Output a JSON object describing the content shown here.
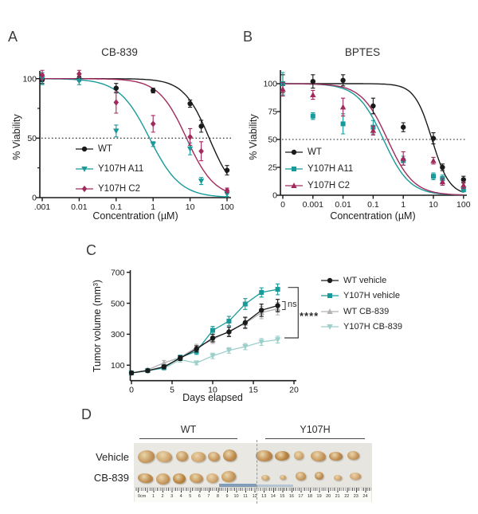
{
  "figure": {
    "panels": {
      "A": {
        "label": "A",
        "title": "CB-839",
        "xlabel": "Concentration (µM)",
        "ylabel": "% Viability"
      },
      "B": {
        "label": "B",
        "title": "BPTES",
        "xlabel": "Concentration (µM)",
        "ylabel": "% Viability"
      },
      "C": {
        "label": "C",
        "xlabel": "Days elapsed",
        "ylabel": "Tumor volume (mm³)"
      },
      "D": {
        "label": "D",
        "col_labels": [
          "WT",
          "Y107H"
        ],
        "row_labels": [
          "Vehicle",
          "CB-839"
        ],
        "ruler": {
          "zero_label": "0cm",
          "numbers": [
            "1",
            "2",
            "3",
            "4",
            "5",
            "6",
            "7",
            "8",
            "9",
            "10",
            "11",
            "12",
            "13",
            "14",
            "15",
            "16",
            "17",
            "18",
            "19",
            "20",
            "21",
            "22",
            "23",
            "24"
          ]
        },
        "tumor_palette": [
          "#c89a61",
          "#bf8c50",
          "#d2a873",
          "#b9833f"
        ],
        "tumors": {
          "wt_vehicle": [
            [
              183,
              573,
              21,
              16,
              0,
              -10
            ],
            [
              206,
              573,
              20,
              14,
              2,
              5
            ],
            [
              228,
              572,
              15,
              13,
              0,
              0
            ],
            [
              249,
              573,
              18,
              13,
              2,
              -5
            ],
            [
              268,
              573,
              15,
              12,
              0,
              8
            ],
            [
              288,
              571,
              17,
              15,
              1,
              0
            ]
          ],
          "wt_cb839": [
            [
              182,
              600,
              19,
              12,
              1,
              5
            ],
            [
              204,
              601,
              17,
              14,
              0,
              -6
            ],
            [
              225,
              600,
              16,
              13,
              3,
              0
            ],
            [
              246,
              600,
              17,
              12,
              0,
              6
            ],
            [
              266,
              600,
              15,
              12,
              2,
              0
            ],
            [
              287,
              598,
              18,
              14,
              0,
              -8
            ]
          ],
          "y107h_vehicle": [
            [
              331,
              572,
              21,
              14,
              1,
              0
            ],
            [
              354,
              572,
              18,
              12,
              3,
              -6
            ],
            [
              375,
              571,
              12,
              11,
              2,
              0
            ],
            [
              399,
              572,
              19,
              13,
              0,
              5
            ],
            [
              421,
              572,
              17,
              11,
              1,
              0
            ],
            [
              443,
              571,
              15,
              11,
              0,
              0
            ]
          ],
          "y107h_cb839": [
            [
              333,
              599,
              10,
              7,
              2,
              0
            ],
            [
              355,
              599,
              8,
              6,
              2,
              0
            ],
            [
              377,
              597,
              13,
              11,
              0,
              0
            ],
            [
              400,
              597,
              11,
              10,
              1,
              0
            ],
            [
              424,
              599,
              10,
              7,
              2,
              0
            ],
            [
              446,
              597,
              14,
              9,
              2,
              0
            ]
          ]
        }
      }
    }
  },
  "colors": {
    "black": "#1a1a1a",
    "teal": "#189a9a",
    "maroon": "#a12a5c",
    "gray": "#b2b2b6",
    "light_teal": "#9dcfcb"
  },
  "chart_data": [
    {
      "panel": "A",
      "type": "line",
      "subtype": "dose-response",
      "title": "CB-839",
      "xlabel": "Concentration (µM)",
      "ylabel": "% Viability",
      "xscale": "log",
      "xtick_labels": [
        ".001",
        "0.01",
        "0.1",
        "1",
        "10",
        "100"
      ],
      "yticks": [
        0,
        50,
        100
      ],
      "ytick_labels": [
        "0",
        "50",
        "100"
      ],
      "minor_yticks": [
        25,
        75
      ],
      "ylim": [
        0,
        110
      ],
      "reference_line_y": 50,
      "legend_position": "inside lower-left",
      "series": [
        {
          "name": "WT",
          "marker": "circle",
          "color": "#1a1a1a",
          "x": [
            0.001,
            0.01,
            0.1,
            1,
            10,
            20,
            100
          ],
          "y": [
            99,
            100,
            92,
            90,
            79,
            60,
            23
          ],
          "err": [
            3,
            2,
            4,
            2,
            3,
            5,
            4
          ],
          "fit": {
            "ic50": 33,
            "hill": 1.25,
            "top": 100,
            "bottom": 0
          }
        },
        {
          "name": "Y107H A11",
          "marker": "triangle-down",
          "color": "#189a9a",
          "x": [
            0.001,
            0.01,
            0.1,
            1,
            10,
            20,
            100
          ],
          "y": [
            100,
            98,
            56,
            45,
            41,
            14,
            3
          ],
          "err": [
            5,
            3,
            5,
            2,
            5,
            3,
            2
          ],
          "fit": {
            "ic50": 0.8,
            "hill": 1.05,
            "top": 100,
            "bottom": 0
          }
        },
        {
          "name": "Y107H C2",
          "marker": "diamond",
          "color": "#a12a5c",
          "x": [
            0.001,
            0.01,
            0.1,
            1,
            10,
            20,
            100
          ],
          "y": [
            103,
            104,
            80,
            62,
            51,
            39,
            6
          ],
          "err": [
            4,
            3,
            9,
            7,
            7,
            8,
            2
          ],
          "fit": {
            "ic50": 8,
            "hill": 1.15,
            "top": 100,
            "bottom": 0
          }
        }
      ]
    },
    {
      "panel": "B",
      "type": "line",
      "subtype": "dose-response",
      "title": "BPTES",
      "xlabel": "Concentration (µM)",
      "ylabel": "% Viability",
      "xscale": "log",
      "xtick_labels": [
        "0",
        "0.001",
        "0.01",
        "0.1",
        "1",
        "10",
        "100"
      ],
      "yticks": [
        0,
        25,
        50,
        75,
        100
      ],
      "ytick_labels": [
        "0",
        "25",
        "50",
        "75",
        "100"
      ],
      "minor_yticks": [],
      "ylim": [
        0,
        112
      ],
      "reference_line_y": 50,
      "legend_position": "inside lower-left",
      "series": [
        {
          "name": "WT",
          "marker": "circle",
          "color": "#1a1a1a",
          "x": [
            0,
            0.001,
            0.01,
            0.1,
            1,
            10,
            20,
            100
          ],
          "y": [
            100,
            102,
            103,
            80,
            61,
            51,
            25,
            14
          ],
          "err": [
            8,
            6,
            5,
            7,
            4,
            5,
            3,
            3
          ],
          "fit": {
            "ic50": 9,
            "hill": 1.5,
            "top": 100,
            "bottom": 0
          }
        },
        {
          "name": "Y107H A11",
          "marker": "square",
          "color": "#189a9a",
          "x": [
            0,
            0.001,
            0.01,
            0.1,
            1,
            10,
            20,
            100
          ],
          "y": [
            100,
            71,
            64,
            61,
            31,
            17,
            15,
            5
          ],
          "err": [
            10,
            3,
            9,
            6,
            4,
            3,
            3,
            2
          ],
          "fit": {
            "ic50": 0.22,
            "hill": 1.0,
            "top": 100,
            "bottom": 0
          }
        },
        {
          "name": "Y107H C2",
          "marker": "triangle-up",
          "color": "#a12a5c",
          "x": [
            0,
            0.001,
            0.01,
            0.1,
            1,
            10,
            20,
            100
          ],
          "y": [
            95,
            90,
            79,
            58,
            33,
            31,
            12,
            9
          ],
          "err": [
            6,
            4,
            8,
            4,
            6,
            3,
            3,
            3
          ],
          "fit": {
            "ic50": 0.3,
            "hill": 1.0,
            "top": 100,
            "bottom": 0
          }
        }
      ]
    },
    {
      "panel": "C",
      "type": "line",
      "subtype": "growth-curve",
      "xlabel": "Days elapsed",
      "ylabel": "Tumor volume (mm³)",
      "x": [
        0,
        2,
        4,
        6,
        8,
        10,
        12,
        14,
        16,
        18
      ],
      "xticks": [
        0,
        5,
        10,
        15,
        20
      ],
      "xtick_labels": [
        "0",
        "5",
        "10",
        "15",
        "20"
      ],
      "yticks": [
        100,
        300,
        500,
        700
      ],
      "ytick_labels": [
        "100",
        "300",
        "500",
        "700"
      ],
      "ylim": [
        0,
        700
      ],
      "legend_position": "right",
      "series": [
        {
          "name": "WT vehicle",
          "marker": "circle",
          "color": "#1a1a1a",
          "y": [
            50,
            65,
            90,
            145,
            205,
            275,
            315,
            375,
            455,
            485
          ],
          "err": [
            8,
            8,
            12,
            15,
            20,
            25,
            30,
            35,
            40,
            40
          ]
        },
        {
          "name": "Y107H vehicle",
          "marker": "square",
          "color": "#189a9a",
          "y": [
            50,
            65,
            85,
            150,
            190,
            325,
            385,
            495,
            570,
            590
          ],
          "err": [
            8,
            8,
            12,
            15,
            20,
            25,
            30,
            35,
            30,
            35
          ]
        },
        {
          "name": "WT CB-839",
          "marker": "triangle-up",
          "color": "#b2b2b6",
          "y": [
            50,
            70,
            115,
            150,
            215,
            265,
            320,
            370,
            440,
            465
          ],
          "err": [
            8,
            10,
            15,
            15,
            20,
            25,
            30,
            35,
            40,
            40
          ]
        },
        {
          "name": "Y107H CB-839",
          "marker": "triangle-down",
          "color": "#9dcfcb",
          "y": [
            50,
            65,
            80,
            135,
            115,
            160,
            195,
            220,
            250,
            265
          ],
          "err": [
            8,
            8,
            12,
            15,
            12,
            18,
            18,
            20,
            22,
            22
          ]
        }
      ],
      "annotations": [
        {
          "text": "ns",
          "compares": [
            "WT vehicle",
            "WT CB-839"
          ]
        },
        {
          "text": "****",
          "compares": [
            "Y107H vehicle",
            "Y107H CB-839"
          ]
        }
      ]
    }
  ]
}
